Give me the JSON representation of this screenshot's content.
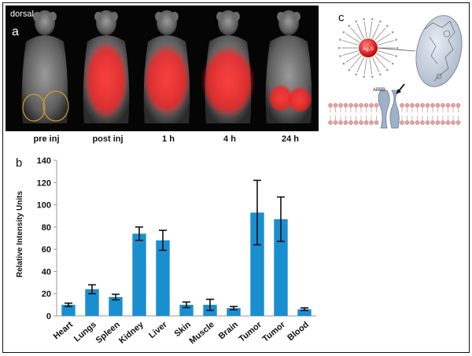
{
  "panel_a": {
    "view_label": "dorsal",
    "panel_label": "a",
    "time_points": [
      "pre inj",
      "post inj",
      "1 h",
      "4 h",
      "24 h"
    ],
    "signal_color": "#ff2a2a"
  },
  "panel_b": {
    "panel_label": "b"
  },
  "panel_c": {
    "panel_label": "c",
    "nanoparticle_label": "Ag₂S",
    "receptor_label": "ABBB"
  },
  "chart_data": {
    "type": "bar",
    "categories": [
      "Heart",
      "Lungs",
      "Spleen",
      "Kidney",
      "Liver",
      "Skin",
      "Muscle",
      "Brain",
      "Tumor",
      "Tumor",
      "Blood"
    ],
    "values": [
      10,
      24,
      17,
      74,
      68,
      10,
      10,
      7,
      93,
      87,
      6
    ],
    "errors": [
      1.5,
      4,
      2.5,
      6,
      9,
      2.5,
      5,
      1.5,
      29,
      20,
      1.2
    ],
    "ylabel": "Relative Intensity Units",
    "ylim": [
      0,
      140
    ],
    "yticks": [
      0,
      20,
      40,
      60,
      80,
      100,
      120,
      140
    ],
    "bar_color": "#1a8fd0",
    "grid": false
  }
}
